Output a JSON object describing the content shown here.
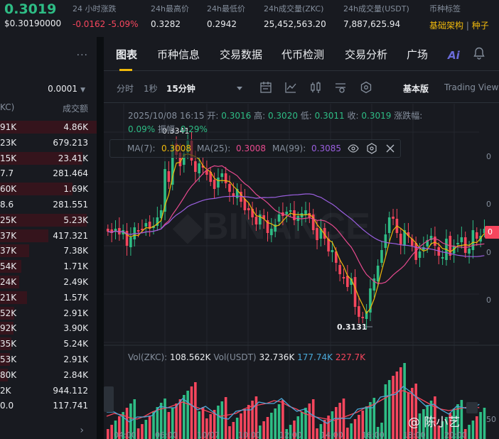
{
  "ticker": {
    "price": "0.3019",
    "price_usd": "$0.30190000",
    "change_label": "24 小时涨跌",
    "change_value": "-0.0162 -5.09%",
    "high_label": "24h最高价",
    "high_value": "0.3282",
    "low_label": "24h最低价",
    "low_value": "0.2942",
    "vol_zkc_label": "24h成交量(ZKC)",
    "vol_zkc_value": "25,452,563.20",
    "vol_usdt_label": "24h成交量(USDT)",
    "vol_usdt_value": "7,887,625.94",
    "tags_label": "币种标签",
    "tags": [
      "基础架构",
      "种子"
    ]
  },
  "order_book": {
    "more": "···",
    "precision": "0.0001",
    "col_amount_header": "KC)",
    "col_total_header": "成交额",
    "rows": [
      {
        "amount": "91K",
        "total": "4.86K",
        "depth": 1.0
      },
      {
        "amount": "23K",
        "total": "679.213",
        "depth": 0.0
      },
      {
        "amount": "15K",
        "total": "23.41K",
        "depth": 0.85
      },
      {
        "amount": "7.7",
        "total": "281.464",
        "depth": 0.0
      },
      {
        "amount": "60K",
        "total": "1.69K",
        "depth": 0.75
      },
      {
        "amount": "8.6",
        "total": "281.551",
        "depth": 0.0
      },
      {
        "amount": "25K",
        "total": "5.23K",
        "depth": 0.9
      },
      {
        "amount": "37K",
        "total": "417.321",
        "depth": 0.5
      },
      {
        "amount": "37K",
        "total": "7.38K",
        "depth": 0.3
      },
      {
        "amount": "54K",
        "total": "1.71K",
        "depth": 0.22
      },
      {
        "amount": "24K",
        "total": "2.49K",
        "depth": 0.2
      },
      {
        "amount": "21K",
        "total": "1.57K",
        "depth": 0.28
      },
      {
        "amount": "52K",
        "total": "2.91K",
        "depth": 0.15
      },
      {
        "amount": "92K",
        "total": "3.90K",
        "depth": 0.14
      },
      {
        "amount": "35K",
        "total": "5.24K",
        "depth": 0.12
      },
      {
        "amount": "53K",
        "total": "2.91K",
        "depth": 0.1
      },
      {
        "amount": "80K",
        "total": "2.84K",
        "depth": 0.08
      },
      {
        "amount": "2K",
        "total": "944.112",
        "depth": 0.0
      },
      {
        "amount": "0.0",
        "total": "117.741",
        "depth": 0.0
      }
    ],
    "scroll_arrow": "›"
  },
  "tabs": [
    "图表",
    "币种信息",
    "交易数据",
    "代币检测",
    "交易分析",
    "广场"
  ],
  "ai_label": "Ai",
  "toolbar": {
    "time_label": "分时",
    "interval_1s": "1秒",
    "interval_selected": "15分钟",
    "view_basic": "基本版",
    "view_tv": "Trading View"
  },
  "ohlc": {
    "datetime": "2025/10/08 16:15",
    "open_label": "开:",
    "open": "0.3016",
    "high_label": "高:",
    "high": "0.3020",
    "low_label": "低:",
    "low": "0.3011",
    "close_label": "收:",
    "close": "0.3019",
    "change_label": "涨跌幅:",
    "change": "0.09%",
    "amp_label": "振幅:",
    "amp": "0.29%"
  },
  "ma": {
    "ma7_label": "MA(7):",
    "ma7": "0.3008",
    "ma25_label": "MA(25):",
    "ma25": "0.3008",
    "ma99_label": "MA(99):",
    "ma99": "0.3085"
  },
  "annotations": {
    "high_mark": "0.3341",
    "low_mark": "0.3131"
  },
  "axis": {
    "price_ticks": [
      "0",
      "0",
      "0",
      "0"
    ],
    "vol_tick": "50",
    "x_ticks": [
      "04:00",
      "06:00",
      "10/07",
      "10:00",
      "12:00",
      "14:00",
      "16:00",
      "18:00",
      "20:00"
    ],
    "last_price_tag": "0"
  },
  "volume": {
    "vol_zkc_label": "Vol(ZKC):",
    "vol_zkc": "108.562K",
    "vol_usdt_label": "Vol(USDT)",
    "vol_usdt": "32.736K",
    "ma_blue": "177.74K",
    "ma_red": "227.7K"
  },
  "watermark": "@ 陈小艺",
  "colors": {
    "up": "#2ebd85",
    "down": "#f6465d",
    "accent": "#f0b90b",
    "ma7": "#f0b90b",
    "ma25": "#e84a8f",
    "ma99": "#9b5fe0"
  }
}
